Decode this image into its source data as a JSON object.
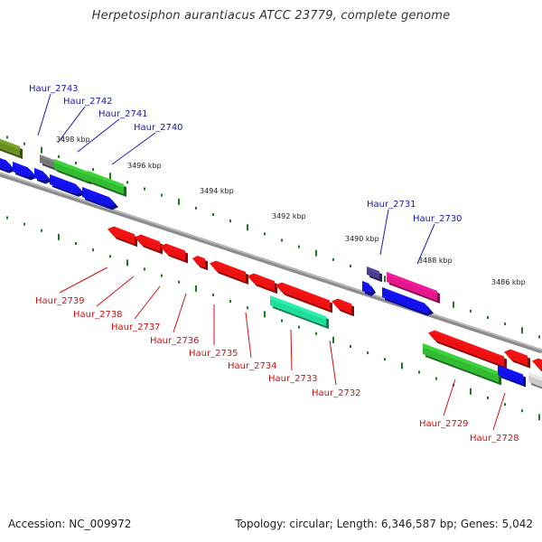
{
  "header": {
    "title": "Herpetosiphon aurantiacus ATCC 23779, complete genome"
  },
  "footer": {
    "accession": "Accession: NC_009972",
    "summary": "Topology: circular; Length: 6,346,587 bp; Genes: 5,042"
  },
  "colors": {
    "backbone": "#8c8c8c",
    "tick": "#1f7a1f",
    "label_top": "#1a1aa6",
    "label_bottom": "#cc1111",
    "red": "#ee1111",
    "blue": "#1111ee",
    "green": "#33bb33",
    "olive": "#6b8e23",
    "grey": "#777777",
    "purple": "#4b3d8f",
    "magenta": "#e6178a",
    "teal": "#22dd99",
    "lightgrey": "#cccccc"
  },
  "scale_labels": [
    "3498 kbp",
    "3496 kbp",
    "3494 kbp",
    "3492 kbp",
    "3490 kbp",
    "3488 kbp",
    "3486 kbp"
  ],
  "gene_labels_top": [
    "Haur_2743",
    "Haur_2742",
    "Haur_2741",
    "Haur_2740",
    "Haur_2731",
    "Haur_2730"
  ],
  "gene_labels_bottom": [
    "Haur_2739",
    "Haur_2738",
    "Haur_2737",
    "Haur_2736",
    "Haur_2735",
    "Haur_2734",
    "Haur_2733",
    "Haur_2732",
    "Haur_2729",
    "Haur_2728"
  ]
}
